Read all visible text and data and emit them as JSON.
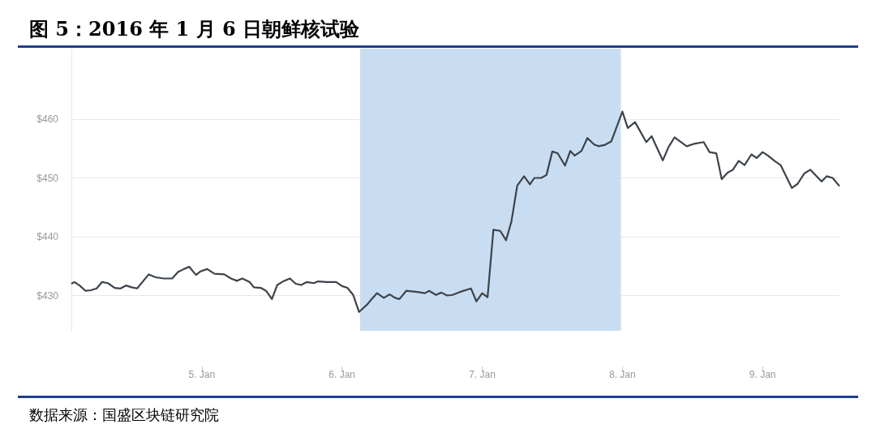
{
  "chart_data": {
    "type": "line",
    "title": "图 5：2016 年 1 月 6 日朝鲜核试验",
    "annotations": [
      "数据来源：国盛区块链研究院"
    ],
    "series": [
      {
        "color": "#3d434a",
        "x": [
          "2016-01-04T01:40",
          "2016-01-04T02:10",
          "2016-01-04T03:05",
          "2016-01-04T04:05",
          "2016-01-04T05:00",
          "2016-01-04T06:00",
          "2016-01-04T06:55",
          "2016-01-04T07:55",
          "2016-01-04T09:05",
          "2016-01-04T10:05",
          "2016-01-04T11:00",
          "2016-01-04T12:00",
          "2016-01-04T12:55",
          "2016-01-04T14:55",
          "2016-01-04T16:05",
          "2016-01-04T17:30",
          "2016-01-04T18:55",
          "2016-01-04T19:55",
          "2016-01-04T20:55",
          "2016-01-04T21:50",
          "2016-01-04T23:00",
          "2016-01-04T23:45",
          "2016-01-05T00:55",
          "2016-01-05T02:10",
          "2016-01-05T03:50",
          "2016-01-05T05:00",
          "2016-01-05T06:00",
          "2016-01-05T06:55",
          "2016-01-05T08:10",
          "2016-01-05T08:55",
          "2016-01-05T10:05",
          "2016-01-05T11:00",
          "2016-01-05T12:00",
          "2016-01-05T12:55",
          "2016-01-05T13:55",
          "2016-01-05T15:05",
          "2016-01-05T16:05",
          "2016-01-05T17:00",
          "2016-01-05T18:00",
          "2016-01-05T19:10",
          "2016-01-05T19:55",
          "2016-01-05T21:20",
          "2016-01-05T23:00",
          "2016-01-06T00:00",
          "2016-01-06T00:55",
          "2016-01-06T01:55",
          "2016-01-06T02:55",
          "2016-01-06T04:20",
          "2016-01-06T05:00",
          "2016-01-06T06:00",
          "2016-01-06T07:10",
          "2016-01-06T08:10",
          "2016-01-06T09:05",
          "2016-01-06T09:50",
          "2016-01-06T11:00",
          "2016-01-06T12:55",
          "2016-01-06T14:10",
          "2016-01-06T14:55",
          "2016-01-06T16:05",
          "2016-01-06T17:00",
          "2016-01-06T18:00",
          "2016-01-06T18:55",
          "2016-01-06T20:10",
          "2016-01-06T22:05",
          "2016-01-06T23:00",
          "2016-01-07T00:00",
          "2016-01-07T00:55",
          "2016-01-07T01:55",
          "2016-01-07T03:05",
          "2016-01-07T04:05",
          "2016-01-07T05:00",
          "2016-01-07T06:00",
          "2016-01-07T07:10",
          "2016-01-07T08:10",
          "2016-01-07T08:55",
          "2016-01-07T10:05",
          "2016-01-07T11:00",
          "2016-01-07T12:00",
          "2016-01-07T12:55",
          "2016-01-07T14:10",
          "2016-01-07T15:05",
          "2016-01-07T15:50",
          "2016-01-07T17:00",
          "2016-01-07T18:00",
          "2016-01-07T19:10",
          "2016-01-07T19:55",
          "2016-01-07T20:55",
          "2016-01-07T22:05",
          "2016-01-08T00:00",
          "2016-01-08T00:55",
          "2016-01-08T02:10",
          "2016-01-08T04:05",
          "2016-01-08T05:00",
          "2016-01-08T06:55",
          "2016-01-08T07:55",
          "2016-01-08T08:55",
          "2016-01-08T11:00",
          "2016-01-08T12:15",
          "2016-01-08T13:55",
          "2016-01-08T14:55",
          "2016-01-08T16:05",
          "2016-01-08T17:00",
          "2016-01-08T18:00",
          "2016-01-08T18:55",
          "2016-01-08T19:55",
          "2016-01-08T20:55",
          "2016-01-08T22:05",
          "2016-01-08T23:00",
          "2016-01-09T00:00",
          "2016-01-09T00:55",
          "2016-01-09T02:10",
          "2016-01-09T03:05",
          "2016-01-09T05:00",
          "2016-01-09T06:00",
          "2016-01-09T07:10",
          "2016-01-09T08:10",
          "2016-01-09T10:05",
          "2016-01-09T11:00",
          "2016-01-09T12:00",
          "2016-01-09T13:10"
        ],
        "values": [
          432.0,
          432.3,
          431.7,
          430.8,
          430.9,
          431.2,
          432.3,
          432.1,
          431.3,
          431.2,
          431.7,
          431.4,
          431.2,
          433.6,
          433.1,
          432.9,
          432.9,
          434.0,
          434.5,
          434.9,
          433.5,
          434.1,
          434.5,
          433.7,
          433.6,
          432.9,
          432.5,
          432.9,
          432.3,
          431.4,
          431.3,
          430.8,
          429.4,
          431.8,
          432.4,
          432.9,
          432.0,
          431.8,
          432.3,
          432.1,
          432.4,
          432.3,
          432.3,
          431.6,
          431.3,
          430.1,
          427.2,
          428.5,
          429.3,
          430.4,
          429.6,
          430.2,
          429.6,
          429.4,
          430.8,
          430.6,
          430.4,
          430.8,
          430.1,
          430.5,
          430.0,
          430.1,
          430.6,
          431.2,
          429.0,
          430.4,
          429.7,
          441.2,
          441.0,
          439.4,
          442.6,
          448.7,
          450.3,
          448.9,
          450.0,
          450.0,
          450.5,
          454.5,
          454.2,
          452.1,
          454.6,
          453.8,
          454.6,
          456.8,
          455.7,
          455.4,
          455.6,
          456.2,
          461.3,
          458.5,
          459.5,
          456.1,
          457.1,
          453.0,
          455.3,
          456.9,
          455.4,
          455.8,
          456.1,
          454.4,
          454.2,
          449.8,
          450.9,
          451.4,
          452.9,
          452.2,
          454.0,
          453.4,
          454.4,
          453.8,
          452.8,
          452.2,
          448.3,
          449.0,
          450.8,
          451.4,
          449.4,
          450.3,
          450.0,
          448.6
        ]
      }
    ],
    "xlim": [
      "2016-01-04T01:40",
      "2016-01-09T13:10"
    ],
    "xticks": [
      {
        "value": "2016-01-05",
        "label": "5. Jan"
      },
      {
        "value": "2016-01-06",
        "label": "6. Jan"
      },
      {
        "value": "2016-01-07",
        "label": "7. Jan"
      },
      {
        "value": "2016-01-08",
        "label": "8. Jan"
      },
      {
        "value": "2016-01-09",
        "label": "9. Jan"
      }
    ],
    "yticks": [
      {
        "value": 430,
        "label": "$430"
      },
      {
        "value": 440,
        "label": "$440"
      },
      {
        "value": 450,
        "label": "$450"
      },
      {
        "value": 460,
        "label": "$460"
      }
    ],
    "ylim": [
      424,
      472
    ],
    "bands": [
      {
        "axis": "x",
        "from": "2016-01-06T03:05",
        "to": "2016-01-07T23:45",
        "color": "#c9ddf2"
      }
    ],
    "grid": "y",
    "marker": "none",
    "line_style": "solid"
  }
}
